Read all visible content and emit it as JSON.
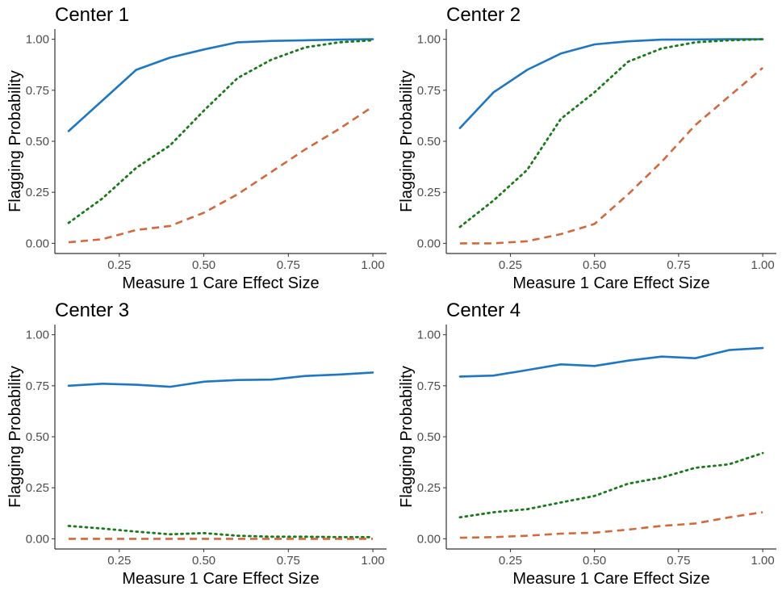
{
  "figure": {
    "colors": {
      "blue": "#1f77c4",
      "green": "#1a7a1a",
      "orange": "#d2693c",
      "axis": "#333333",
      "tick_text": "#4d4d4d",
      "label_text": "#000000"
    }
  },
  "chart_data": [
    {
      "type": "line",
      "title": "Center 1",
      "xlabel": "Measure 1 Care Effect Size",
      "ylabel": "Flagging Probability",
      "xlim": [
        0.1,
        1.0
      ],
      "ylim": [
        0,
        1
      ],
      "xticks": [
        0.25,
        0.5,
        0.75,
        1.0
      ],
      "xtick_labels": [
        "0.25",
        "0.50",
        "0.75",
        "1.00"
      ],
      "yticks": [
        0,
        0.25,
        0.5,
        0.75,
        1.0
      ],
      "ytick_labels": [
        "0.00",
        "0.25",
        "0.50",
        "0.75",
        "1.00"
      ],
      "x": [
        0.1,
        0.2,
        0.3,
        0.4,
        0.5,
        0.6,
        0.7,
        0.8,
        0.9,
        1.0
      ],
      "series": [
        {
          "name": "solid",
          "color": "#1f77c4",
          "dash": "solid",
          "values": [
            0.55,
            0.7,
            0.85,
            0.91,
            0.95,
            0.985,
            0.992,
            0.995,
            0.998,
            1.0
          ]
        },
        {
          "name": "dotted",
          "color": "#1a7a1a",
          "dash": "dotted",
          "values": [
            0.1,
            0.22,
            0.37,
            0.48,
            0.65,
            0.81,
            0.9,
            0.96,
            0.985,
            0.995
          ]
        },
        {
          "name": "dashed",
          "color": "#d2693c",
          "dash": "dashed",
          "values": [
            0.005,
            0.02,
            0.065,
            0.085,
            0.15,
            0.24,
            0.35,
            0.46,
            0.56,
            0.67
          ]
        }
      ]
    },
    {
      "type": "line",
      "title": "Center 2",
      "xlabel": "Measure 1 Care Effect Size",
      "ylabel": "Flagging Probability",
      "xlim": [
        0.1,
        1.0
      ],
      "ylim": [
        0,
        1
      ],
      "xticks": [
        0.25,
        0.5,
        0.75,
        1.0
      ],
      "xtick_labels": [
        "0.25",
        "0.50",
        "0.75",
        "1.00"
      ],
      "yticks": [
        0,
        0.25,
        0.5,
        0.75,
        1.0
      ],
      "ytick_labels": [
        "0.00",
        "0.25",
        "0.50",
        "0.75",
        "1.00"
      ],
      "x": [
        0.1,
        0.2,
        0.3,
        0.4,
        0.5,
        0.6,
        0.7,
        0.8,
        0.9,
        1.0
      ],
      "series": [
        {
          "name": "solid",
          "color": "#1f77c4",
          "dash": "solid",
          "values": [
            0.565,
            0.74,
            0.85,
            0.93,
            0.975,
            0.99,
            0.998,
            0.999,
            1.0,
            1.0
          ]
        },
        {
          "name": "dotted",
          "color": "#1a7a1a",
          "dash": "dotted",
          "values": [
            0.08,
            0.21,
            0.36,
            0.61,
            0.74,
            0.89,
            0.955,
            0.985,
            0.995,
            1.0
          ]
        },
        {
          "name": "dashed",
          "color": "#d2693c",
          "dash": "dashed",
          "values": [
            0.0,
            0.0,
            0.01,
            0.045,
            0.095,
            0.24,
            0.4,
            0.58,
            0.72,
            0.86
          ]
        }
      ]
    },
    {
      "type": "line",
      "title": "Center 3",
      "xlabel": "Measure 1 Care Effect Size",
      "ylabel": "Flagging Probability",
      "xlim": [
        0.1,
        1.0
      ],
      "ylim": [
        0,
        1
      ],
      "xticks": [
        0.25,
        0.5,
        0.75,
        1.0
      ],
      "xtick_labels": [
        "0.25",
        "0.50",
        "0.75",
        "1.00"
      ],
      "yticks": [
        0,
        0.25,
        0.5,
        0.75,
        1.0
      ],
      "ytick_labels": [
        "0.00",
        "0.25",
        "0.50",
        "0.75",
        "1.00"
      ],
      "x": [
        0.1,
        0.2,
        0.3,
        0.4,
        0.5,
        0.6,
        0.7,
        0.8,
        0.9,
        1.0
      ],
      "series": [
        {
          "name": "solid",
          "color": "#1f77c4",
          "dash": "solid",
          "values": [
            0.75,
            0.76,
            0.755,
            0.745,
            0.77,
            0.778,
            0.78,
            0.798,
            0.805,
            0.815
          ]
        },
        {
          "name": "dotted",
          "color": "#1a7a1a",
          "dash": "dotted",
          "values": [
            0.063,
            0.05,
            0.035,
            0.022,
            0.028,
            0.015,
            0.01,
            0.01,
            0.008,
            0.008
          ]
        },
        {
          "name": "dashed",
          "color": "#d2693c",
          "dash": "dashed",
          "values": [
            0.0,
            0.0,
            0.0,
            0.0,
            0.0,
            0.0,
            0.0,
            0.0,
            0.0,
            0.0
          ]
        }
      ]
    },
    {
      "type": "line",
      "title": "Center 4",
      "xlabel": "Measure 1 Care Effect Size",
      "ylabel": "Flagging Probability",
      "xlim": [
        0.1,
        1.0
      ],
      "ylim": [
        0,
        1
      ],
      "xticks": [
        0.25,
        0.5,
        0.75,
        1.0
      ],
      "xtick_labels": [
        "0.25",
        "0.50",
        "0.75",
        "1.00"
      ],
      "yticks": [
        0,
        0.25,
        0.5,
        0.75,
        1.0
      ],
      "ytick_labels": [
        "0.00",
        "0.25",
        "0.50",
        "0.75",
        "1.00"
      ],
      "x": [
        0.1,
        0.2,
        0.3,
        0.4,
        0.5,
        0.6,
        0.7,
        0.8,
        0.9,
        1.0
      ],
      "series": [
        {
          "name": "solid",
          "color": "#1f77c4",
          "dash": "solid",
          "values": [
            0.795,
            0.8,
            0.827,
            0.855,
            0.847,
            0.873,
            0.893,
            0.885,
            0.925,
            0.935
          ]
        },
        {
          "name": "dotted",
          "color": "#1a7a1a",
          "dash": "dotted",
          "values": [
            0.105,
            0.13,
            0.145,
            0.178,
            0.21,
            0.27,
            0.3,
            0.348,
            0.365,
            0.42
          ]
        },
        {
          "name": "dashed",
          "color": "#d2693c",
          "dash": "dashed",
          "values": [
            0.005,
            0.008,
            0.015,
            0.025,
            0.03,
            0.045,
            0.063,
            0.075,
            0.105,
            0.13
          ]
        }
      ]
    }
  ]
}
